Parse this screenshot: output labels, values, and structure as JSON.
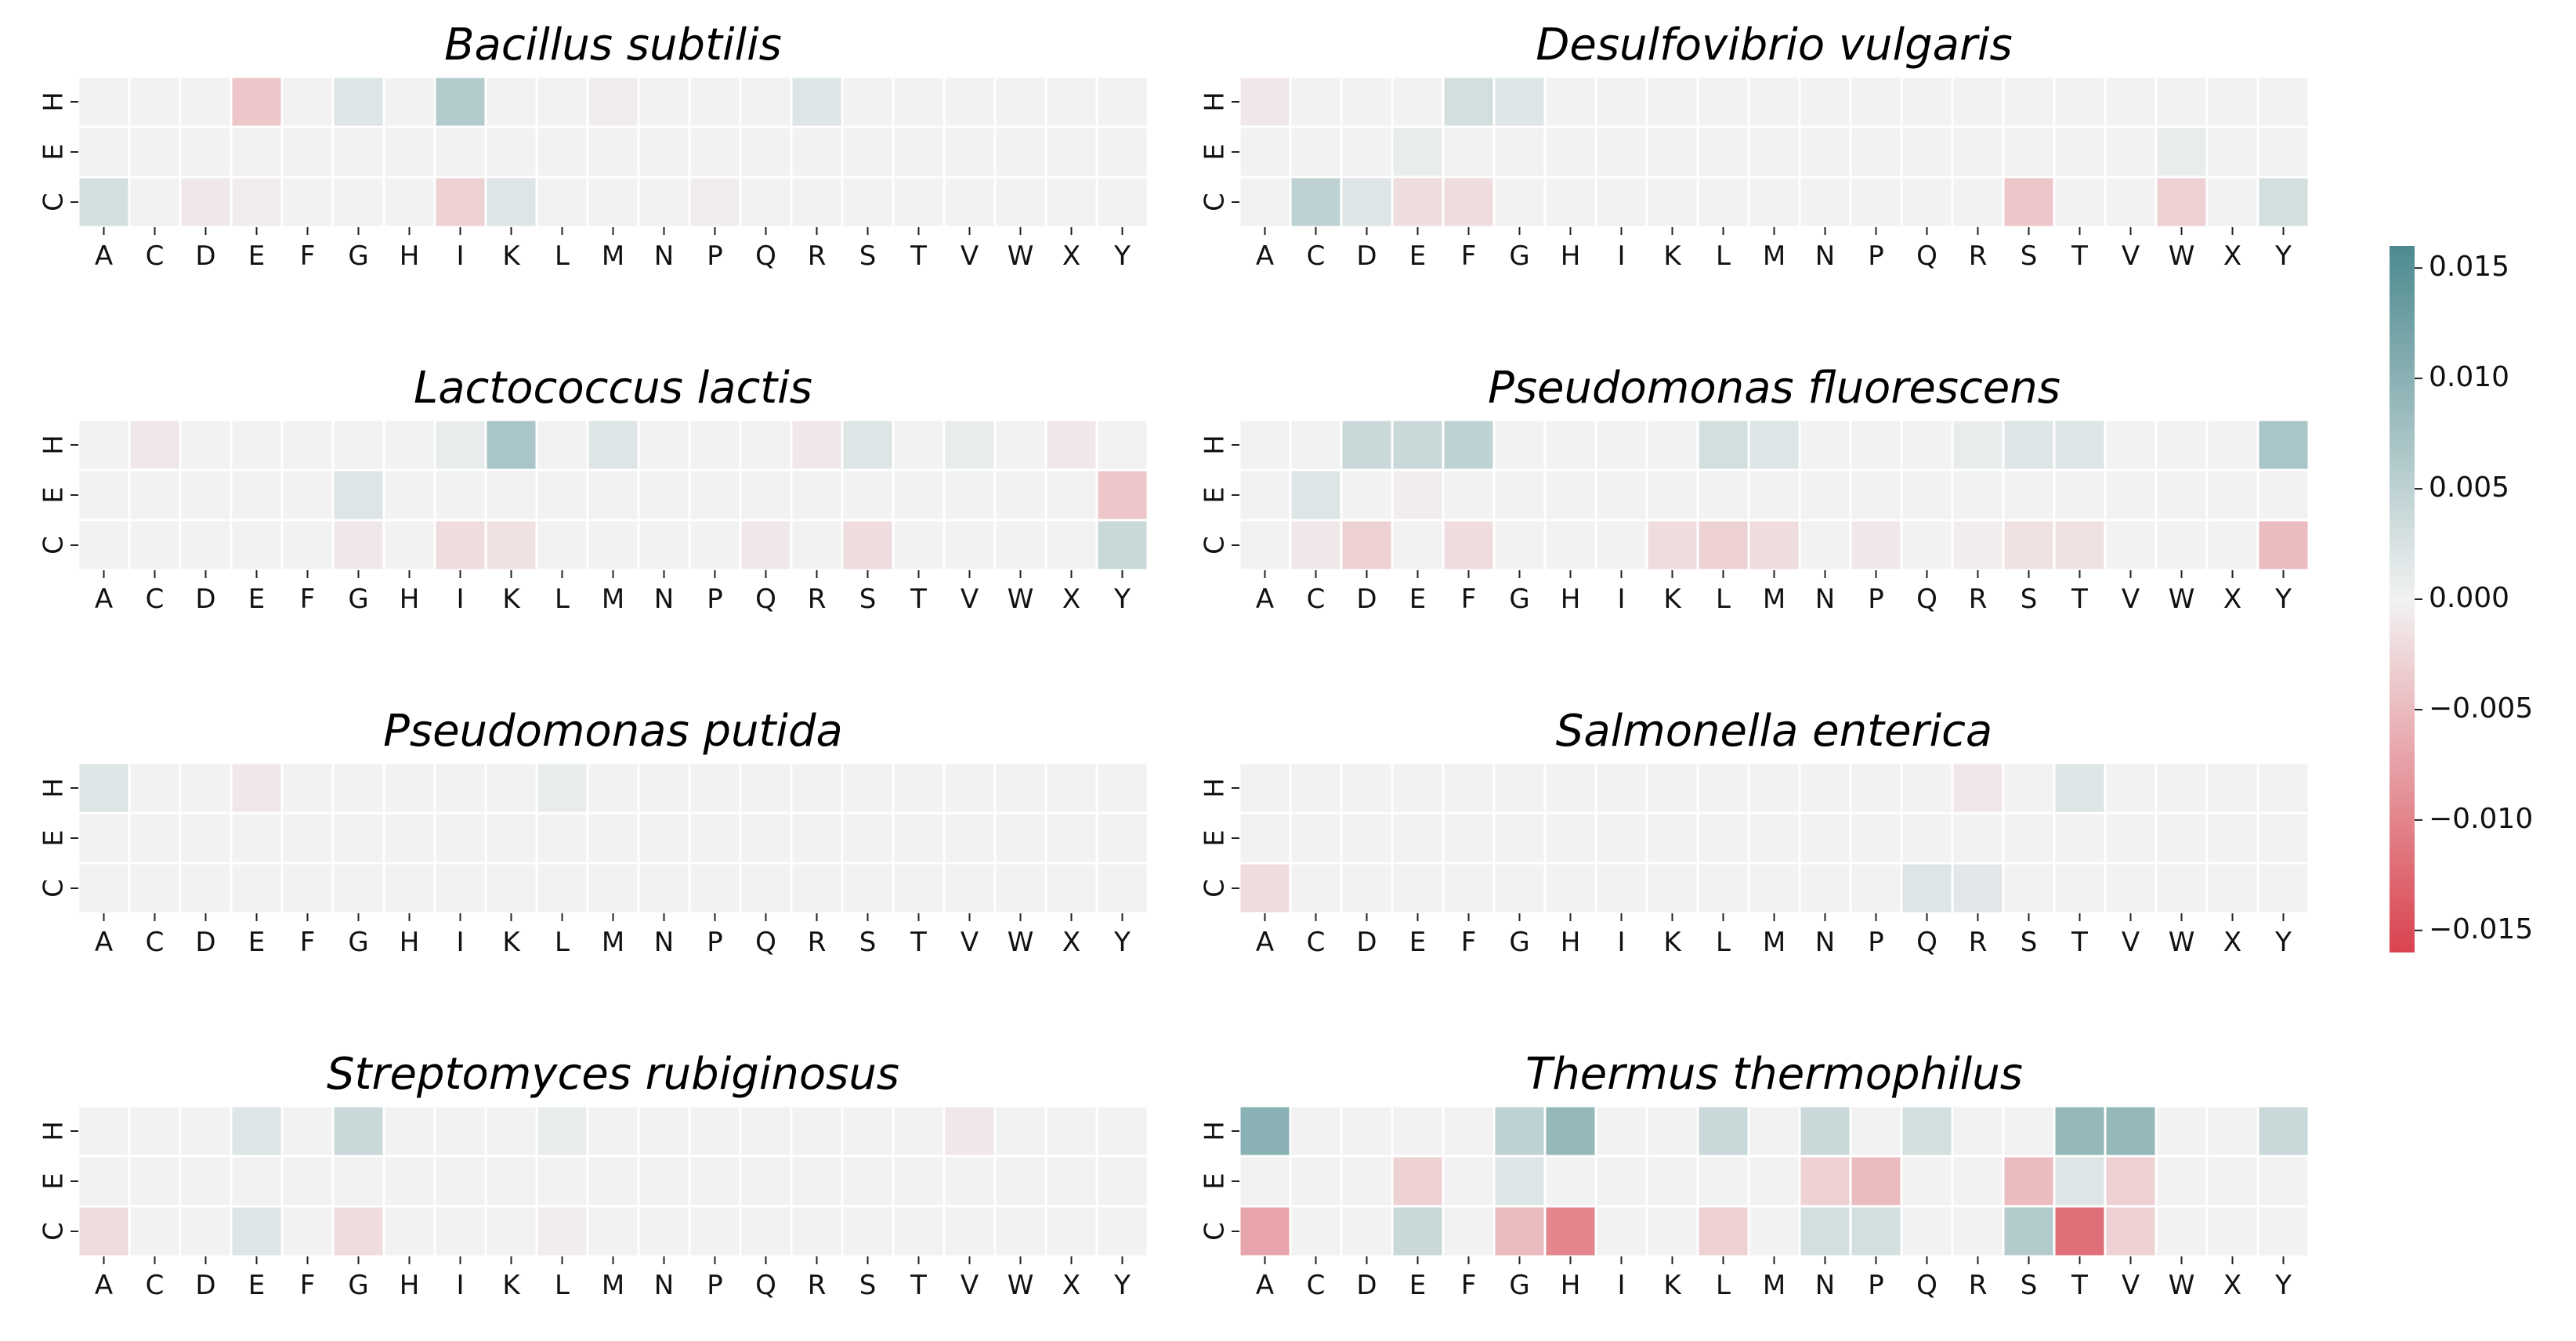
{
  "chart_data": {
    "type": "heatmap",
    "colorbar": {
      "vmin": -0.016,
      "vmax": 0.016,
      "ticks": [
        "0.015",
        "0.010",
        "0.005",
        "0.000",
        "−0.005",
        "−0.010",
        "−0.015"
      ],
      "tick_values": [
        0.015,
        0.01,
        0.005,
        0.0,
        -0.005,
        -0.01,
        -0.015
      ],
      "low_color": "#d9434f",
      "mid_color": "#f2f2f2",
      "high_color": "#4c8a8f"
    },
    "x_categories": [
      "A",
      "C",
      "D",
      "E",
      "F",
      "G",
      "H",
      "I",
      "K",
      "L",
      "M",
      "N",
      "P",
      "Q",
      "R",
      "S",
      "T",
      "V",
      "W",
      "X",
      "Y"
    ],
    "y_categories": [
      "H",
      "E",
      "C"
    ],
    "panels": [
      {
        "title": "Bacillus subtilis",
        "values": [
          [
            0,
            0,
            0,
            -0.004,
            0,
            0.002,
            0,
            0.006,
            0,
            0,
            -0.0005,
            0,
            0,
            0,
            0.002,
            0,
            0,
            0,
            0,
            0,
            0
          ],
          [
            0,
            0,
            0,
            0,
            0,
            0,
            0,
            0,
            0,
            0,
            0,
            0,
            0,
            0,
            0,
            0,
            0,
            0,
            0,
            0,
            0
          ],
          [
            0.003,
            0,
            -0.001,
            -0.0005,
            0,
            0,
            0,
            -0.003,
            0.002,
            0,
            0,
            0,
            -0.0005,
            0,
            0,
            0,
            0,
            0,
            0,
            0,
            0
          ]
        ]
      },
      {
        "title": "Desulfovibrio vulgaris",
        "values": [
          [
            -0.001,
            0,
            0,
            0,
            0.003,
            0.002,
            0,
            0,
            0,
            0,
            0,
            0,
            0,
            0,
            0,
            0,
            0,
            0,
            0,
            0,
            0
          ],
          [
            0,
            0,
            0,
            0.001,
            0,
            0,
            0,
            0,
            0,
            0,
            0,
            0,
            0,
            0,
            0,
            0,
            0,
            0,
            0.001,
            0,
            0
          ],
          [
            0,
            0.005,
            0.002,
            -0.002,
            -0.002,
            0,
            0,
            0,
            0,
            0,
            0,
            0,
            0,
            0,
            0,
            -0.004,
            0,
            0,
            -0.003,
            0,
            0.003
          ]
        ]
      },
      {
        "title": "Lactococcus lactis",
        "values": [
          [
            0,
            -0.001,
            0,
            0,
            0,
            0,
            0,
            0.001,
            0.007,
            0,
            0.002,
            0,
            0,
            0,
            -0.001,
            0.002,
            0,
            0.001,
            0,
            -0.001,
            0
          ],
          [
            0,
            0,
            0,
            0,
            0,
            0.002,
            0,
            0,
            0,
            0,
            0,
            0,
            0,
            0,
            0,
            0,
            0,
            0,
            0,
            0,
            -0.004
          ],
          [
            0,
            0,
            0,
            0,
            0,
            -0.001,
            0,
            -0.002,
            -0.0015,
            0,
            0,
            0,
            0,
            -0.001,
            0,
            -0.002,
            0,
            0,
            0,
            0,
            0.004
          ]
        ]
      },
      {
        "title": "Pseudomonas fluorescens",
        "values": [
          [
            0,
            0,
            0.004,
            0.004,
            0.005,
            0,
            0,
            0,
            0,
            0.003,
            0.002,
            0,
            0,
            0,
            0.001,
            0.002,
            0.002,
            0,
            0,
            0,
            0.007
          ],
          [
            0,
            0.002,
            0,
            -0.0005,
            0,
            0,
            0,
            0,
            0,
            0,
            0,
            0,
            0,
            0,
            0,
            0,
            0,
            0,
            0,
            0,
            0
          ],
          [
            0,
            -0.001,
            -0.003,
            0,
            -0.002,
            0,
            0,
            0,
            -0.002,
            -0.003,
            -0.002,
            0,
            -0.001,
            0,
            -0.0005,
            -0.0015,
            -0.0015,
            0,
            0,
            0,
            -0.005
          ]
        ]
      },
      {
        "title": "Pseudomonas putida",
        "values": [
          [
            0.002,
            0,
            0,
            -0.001,
            0,
            0,
            0,
            0,
            0,
            0.001,
            0,
            0,
            0,
            0,
            0,
            0,
            0,
            0,
            0,
            0,
            0
          ],
          [
            0,
            0,
            0,
            0,
            0,
            0,
            0,
            0,
            0,
            0,
            0,
            0,
            0,
            0,
            0,
            0,
            0,
            0,
            0,
            0,
            0
          ],
          [
            0,
            0,
            0,
            0,
            0,
            0,
            0,
            0,
            0,
            0,
            0,
            0,
            0,
            0,
            0,
            0,
            0,
            0,
            0,
            0,
            0
          ]
        ]
      },
      {
        "title": "Salmonella enterica",
        "values": [
          [
            0,
            0,
            0,
            0,
            0,
            0,
            0,
            0,
            0,
            0,
            0,
            0,
            0,
            0,
            -0.001,
            0,
            0.002,
            0,
            0,
            0,
            0
          ],
          [
            0,
            0,
            0,
            0,
            0,
            0,
            0,
            0,
            0,
            0,
            0,
            0,
            0,
            0,
            0,
            0,
            0,
            0,
            0,
            0,
            0
          ],
          [
            -0.002,
            0,
            0,
            0,
            0,
            0,
            0,
            0,
            0,
            0,
            0,
            0,
            0,
            0.002,
            0.0015,
            0,
            0,
            0,
            0,
            0,
            0
          ]
        ]
      },
      {
        "title": "Streptomyces rubiginosus",
        "values": [
          [
            0,
            0,
            0,
            0.002,
            0,
            0.004,
            0,
            0,
            0,
            0.001,
            0,
            0,
            0,
            0,
            0,
            0,
            0,
            -0.001,
            0,
            0,
            0
          ],
          [
            0,
            0,
            0,
            0,
            0,
            0,
            0,
            0,
            0,
            0,
            0,
            0,
            0,
            0,
            0,
            0,
            0,
            0,
            0,
            0,
            0
          ],
          [
            -0.002,
            0,
            0,
            0.002,
            0,
            -0.002,
            0,
            0,
            0,
            -0.0005,
            0,
            0,
            0,
            0,
            0,
            0,
            0,
            0,
            0,
            0,
            0
          ]
        ]
      },
      {
        "title": "Thermus thermophilus",
        "values": [
          [
            0.01,
            0,
            0,
            0,
            0,
            0.005,
            0.009,
            0,
            0,
            0.004,
            0,
            0.004,
            0,
            0.003,
            0,
            0,
            0.009,
            0.009,
            0,
            0,
            0.004
          ],
          [
            0,
            0,
            0,
            -0.003,
            0,
            0.002,
            0,
            0,
            0,
            0,
            0,
            -0.003,
            -0.005,
            0,
            0,
            -0.005,
            0.002,
            -0.003,
            0,
            0,
            0
          ],
          [
            -0.007,
            0,
            0,
            0.004,
            0,
            -0.005,
            -0.01,
            0,
            0,
            -0.003,
            0,
            0.003,
            0.003,
            0,
            0,
            0.006,
            -0.012,
            -0.003,
            0,
            0,
            0
          ]
        ]
      }
    ]
  }
}
